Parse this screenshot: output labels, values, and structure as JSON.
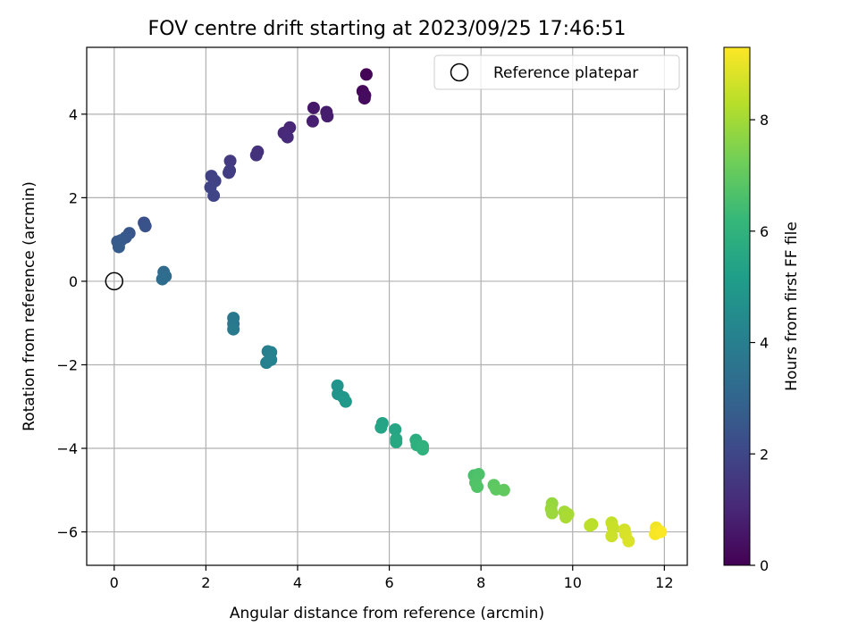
{
  "chart_data": {
    "type": "scatter",
    "title": "FOV centre drift starting at 2023/09/25 17:46:51",
    "xlabel": "Angular distance from reference (arcmin)",
    "ylabel": "Rotation from reference (arcmin)",
    "xlim": [
      -0.6,
      12.5
    ],
    "ylim": [
      -6.8,
      5.6
    ],
    "xticks": [
      "0",
      "2",
      "4",
      "6",
      "8",
      "10",
      "12"
    ],
    "yticks": [
      "−6",
      "−4",
      "−2",
      "0",
      "2",
      "4"
    ],
    "grid": true,
    "legend": {
      "position": "top-right",
      "entries": [
        "Reference platepar"
      ]
    },
    "reference_point": {
      "x": 0,
      "y": 0
    },
    "colorbar": {
      "label": "Hours from first FF file",
      "range": [
        0,
        9.3
      ],
      "ticks": [
        "0",
        "2",
        "4",
        "6",
        "8"
      ],
      "colormap": "viridis"
    },
    "colormap_stops": [
      "#440154",
      "#482878",
      "#3e4989",
      "#31688e",
      "#26828e",
      "#1f9e89",
      "#35b779",
      "#6ece58",
      "#b5de2b",
      "#fde725"
    ],
    "series": [
      {
        "points": [
          {
            "x": 5.5,
            "y": 4.95,
            "h": 0.1
          },
          {
            "x": 5.42,
            "y": 4.55,
            "h": 0.2
          },
          {
            "x": 5.47,
            "y": 4.45,
            "h": 0.25
          },
          {
            "x": 5.46,
            "y": 4.38,
            "h": 0.3
          },
          {
            "x": 4.35,
            "y": 4.15,
            "h": 0.6
          },
          {
            "x": 4.63,
            "y": 4.05,
            "h": 0.7
          },
          {
            "x": 4.65,
            "y": 3.95,
            "h": 0.75
          },
          {
            "x": 4.33,
            "y": 3.83,
            "h": 0.8
          },
          {
            "x": 3.83,
            "y": 3.68,
            "h": 1.0
          },
          {
            "x": 3.7,
            "y": 3.55,
            "h": 1.05
          },
          {
            "x": 3.78,
            "y": 3.45,
            "h": 1.1
          },
          {
            "x": 3.13,
            "y": 3.1,
            "h": 1.3
          },
          {
            "x": 3.1,
            "y": 3.02,
            "h": 1.35
          },
          {
            "x": 2.53,
            "y": 2.88,
            "h": 1.6
          },
          {
            "x": 2.52,
            "y": 2.65,
            "h": 1.65
          },
          {
            "x": 2.5,
            "y": 2.6,
            "h": 1.7
          },
          {
            "x": 2.12,
            "y": 2.52,
            "h": 1.8
          },
          {
            "x": 2.2,
            "y": 2.4,
            "h": 1.85
          },
          {
            "x": 2.1,
            "y": 2.25,
            "h": 1.9
          },
          {
            "x": 2.17,
            "y": 2.05,
            "h": 1.95
          },
          {
            "x": 0.65,
            "y": 1.4,
            "h": 2.3
          },
          {
            "x": 0.68,
            "y": 1.32,
            "h": 2.35
          },
          {
            "x": 0.33,
            "y": 1.15,
            "h": 2.5
          },
          {
            "x": 0.25,
            "y": 1.05,
            "h": 2.55
          },
          {
            "x": 0.15,
            "y": 0.98,
            "h": 2.6
          },
          {
            "x": 0.07,
            "y": 0.95,
            "h": 2.65
          },
          {
            "x": 0.1,
            "y": 0.82,
            "h": 2.7
          },
          {
            "x": 1.08,
            "y": 0.22,
            "h": 3.2
          },
          {
            "x": 1.12,
            "y": 0.12,
            "h": 3.25
          },
          {
            "x": 1.05,
            "y": 0.05,
            "h": 3.3
          },
          {
            "x": 2.6,
            "y": -0.88,
            "h": 3.7
          },
          {
            "x": 2.6,
            "y": -1.02,
            "h": 3.75
          },
          {
            "x": 2.6,
            "y": -1.15,
            "h": 3.8
          },
          {
            "x": 3.35,
            "y": -1.68,
            "h": 4.0
          },
          {
            "x": 3.42,
            "y": -1.7,
            "h": 4.05
          },
          {
            "x": 3.32,
            "y": -1.95,
            "h": 4.1
          },
          {
            "x": 3.42,
            "y": -1.88,
            "h": 4.15
          },
          {
            "x": 4.87,
            "y": -2.5,
            "h": 4.8
          },
          {
            "x": 4.88,
            "y": -2.7,
            "h": 4.85
          },
          {
            "x": 5.0,
            "y": -2.78,
            "h": 4.9
          },
          {
            "x": 5.05,
            "y": -2.88,
            "h": 4.95
          },
          {
            "x": 5.85,
            "y": -3.4,
            "h": 5.4
          },
          {
            "x": 5.82,
            "y": -3.5,
            "h": 5.45
          },
          {
            "x": 6.13,
            "y": -3.55,
            "h": 5.5
          },
          {
            "x": 6.15,
            "y": -3.78,
            "h": 5.55
          },
          {
            "x": 6.15,
            "y": -3.85,
            "h": 5.6
          },
          {
            "x": 6.58,
            "y": -3.8,
            "h": 5.8
          },
          {
            "x": 6.6,
            "y": -3.92,
            "h": 5.85
          },
          {
            "x": 6.73,
            "y": -3.95,
            "h": 5.9
          },
          {
            "x": 6.73,
            "y": -4.02,
            "h": 5.95
          },
          {
            "x": 7.85,
            "y": -4.65,
            "h": 6.6
          },
          {
            "x": 7.95,
            "y": -4.62,
            "h": 6.65
          },
          {
            "x": 7.88,
            "y": -4.82,
            "h": 6.7
          },
          {
            "x": 7.92,
            "y": -4.92,
            "h": 6.75
          },
          {
            "x": 8.28,
            "y": -4.88,
            "h": 6.9
          },
          {
            "x": 8.33,
            "y": -4.98,
            "h": 6.95
          },
          {
            "x": 8.5,
            "y": -5.0,
            "h": 7.0
          },
          {
            "x": 9.55,
            "y": -5.32,
            "h": 7.8
          },
          {
            "x": 9.53,
            "y": -5.45,
            "h": 7.85
          },
          {
            "x": 9.55,
            "y": -5.55,
            "h": 7.9
          },
          {
            "x": 9.82,
            "y": -5.52,
            "h": 8.0
          },
          {
            "x": 9.9,
            "y": -5.58,
            "h": 8.05
          },
          {
            "x": 9.85,
            "y": -5.65,
            "h": 8.1
          },
          {
            "x": 10.42,
            "y": -5.82,
            "h": 8.3
          },
          {
            "x": 10.38,
            "y": -5.85,
            "h": 8.35
          },
          {
            "x": 10.85,
            "y": -5.78,
            "h": 8.5
          },
          {
            "x": 10.88,
            "y": -5.9,
            "h": 8.55
          },
          {
            "x": 10.85,
            "y": -6.1,
            "h": 8.6
          },
          {
            "x": 11.13,
            "y": -5.95,
            "h": 8.7
          },
          {
            "x": 11.15,
            "y": -6.05,
            "h": 8.75
          },
          {
            "x": 11.22,
            "y": -6.22,
            "h": 8.8
          },
          {
            "x": 11.82,
            "y": -5.9,
            "h": 9.1
          },
          {
            "x": 11.85,
            "y": -5.98,
            "h": 9.15
          },
          {
            "x": 11.8,
            "y": -6.05,
            "h": 9.2
          },
          {
            "x": 11.92,
            "y": -6.0,
            "h": 9.25
          }
        ]
      }
    ]
  }
}
